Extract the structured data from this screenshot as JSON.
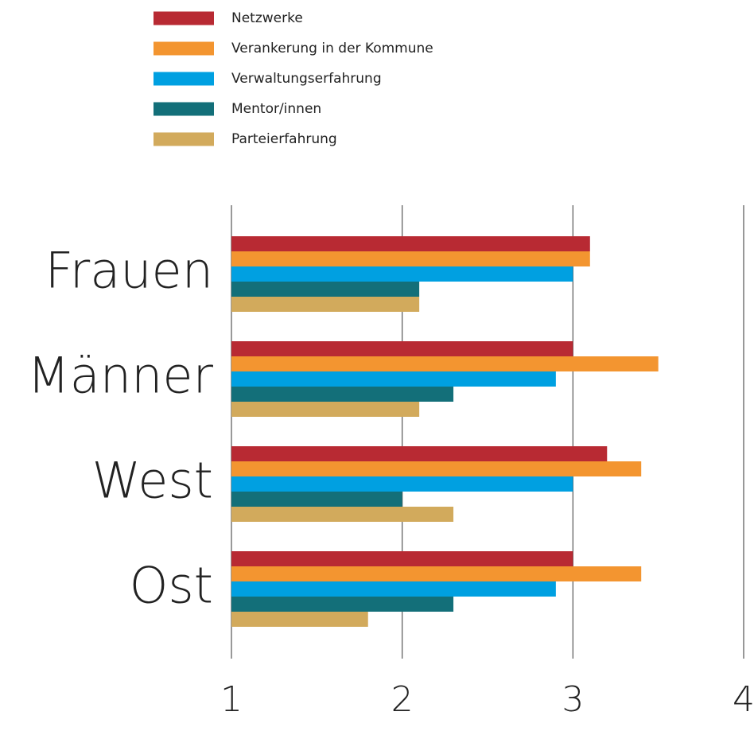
{
  "chart_data": {
    "type": "bar",
    "orientation": "horizontal",
    "categories": [
      "Frauen",
      "Männer",
      "West",
      "Ost"
    ],
    "series": [
      {
        "name": "Netzwerke",
        "color": "#b82a33",
        "values": [
          3.1,
          3.0,
          3.2,
          3.0
        ]
      },
      {
        "name": "Verankerung in der Kommune",
        "color": "#f39530",
        "values": [
          3.1,
          3.5,
          3.4,
          3.4
        ]
      },
      {
        "name": "Verwaltungserfahrung",
        "color": "#00a0e1",
        "values": [
          3.0,
          2.9,
          3.0,
          2.9
        ]
      },
      {
        "name": "Mentor/innen",
        "color": "#136f79",
        "values": [
          2.1,
          2.3,
          2.0,
          2.3
        ]
      },
      {
        "name": "Parteierfahrung",
        "color": "#d2aa5c",
        "values": [
          2.1,
          2.1,
          2.3,
          1.8
        ]
      }
    ],
    "xlim": [
      1,
      4
    ],
    "xticks": [
      1,
      2,
      3,
      4
    ],
    "grid": true,
    "legend": "top"
  }
}
